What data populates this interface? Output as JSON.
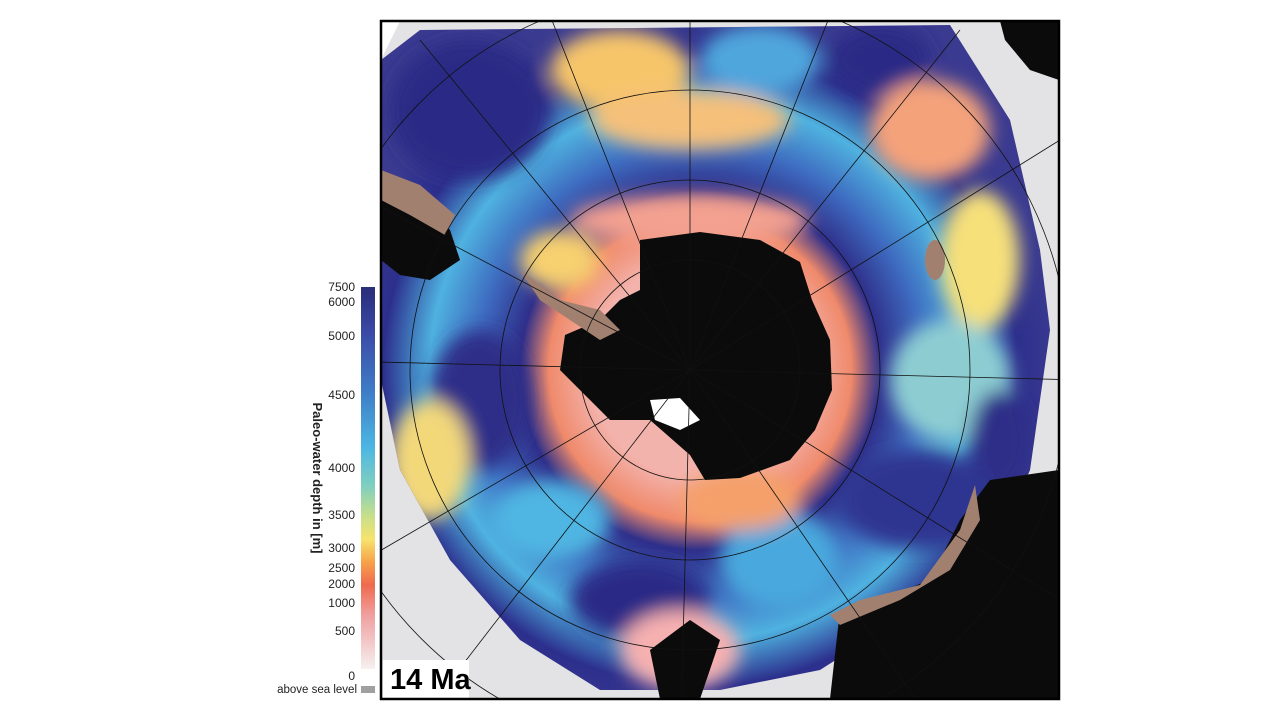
{
  "map": {
    "label": "14 Ma",
    "legend": {
      "title": "Paleo-water depth in [m]",
      "ticks": [
        7500,
        6000,
        5000,
        4500,
        4000,
        3500,
        3000,
        2500,
        2000,
        1000,
        500,
        0
      ],
      "land_label": "above sea level"
    }
  }
}
